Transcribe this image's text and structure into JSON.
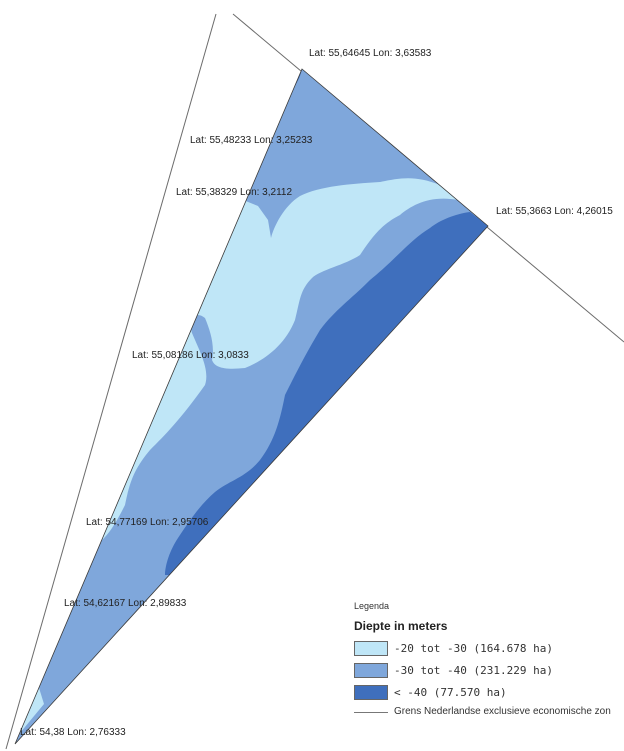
{
  "colors": {
    "shallow": "#bfe6f7",
    "middle": "#7fa7db",
    "deep": "#3f6fbd",
    "boundary": "#6b6b6b",
    "outline": "#3a3a3a"
  },
  "coordinates": [
    {
      "id": "c1",
      "text": "Lat: 55,64645 Lon: 3,63583"
    },
    {
      "id": "c2",
      "text": "Lat: 55,48233 Lon: 3,25233"
    },
    {
      "id": "c3",
      "text": "Lat: 55,38329 Lon: 3,2112"
    },
    {
      "id": "c4",
      "text": "Lat: 55,3663 Lon: 4,26015"
    },
    {
      "id": "c5",
      "text": "Lat: 55,08186 Lon: 3,0833"
    },
    {
      "id": "c6",
      "text": "Lat: 54,77169 Lon: 2,95706"
    },
    {
      "id": "c7",
      "text": "Lat: 54,62167 Lon: 2,89833"
    },
    {
      "id": "c8",
      "text": "Lat: 54,38 Lon: 2,76333"
    }
  ],
  "legend": {
    "title": "Legenda",
    "heading": "Diepte in meters",
    "items": [
      {
        "label": "-20 tot -30 (164.678 ha)",
        "color": "#bfe6f7"
      },
      {
        "label": "-30 tot -40 (231.229 ha)",
        "color": "#7fa7db"
      },
      {
        "label": "< -40 (77.570 ha)",
        "color": "#3f6fbd"
      }
    ],
    "boundary_label": "Grens Nederlandse exclusieve economische zon"
  }
}
